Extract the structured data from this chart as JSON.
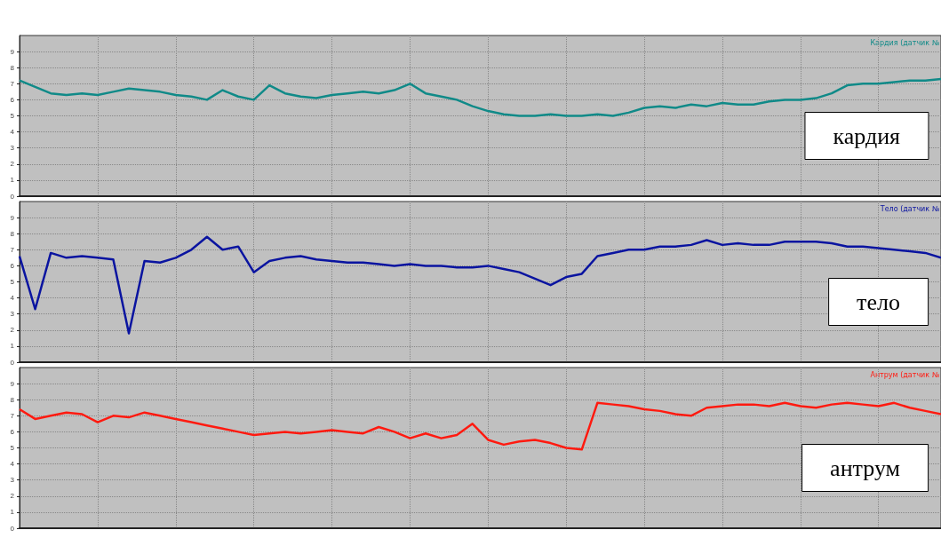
{
  "chart_data": [
    {
      "type": "line",
      "title": "кардия",
      "annotations": [
        "Кардия (датчик №"
      ],
      "categories": [
        null,
        null,
        null,
        null,
        null,
        null,
        null,
        null,
        null,
        null,
        null,
        null,
        null,
        null,
        null,
        null,
        null,
        null,
        null,
        null,
        null,
        null,
        null,
        null,
        null,
        null,
        null,
        null,
        null,
        null,
        null,
        null,
        null,
        null,
        null,
        null,
        null,
        null,
        null,
        null,
        null,
        null,
        null,
        null,
        null,
        null,
        null,
        null,
        null,
        null,
        null,
        null,
        null,
        null,
        null,
        null,
        null,
        null,
        null,
        null
      ],
      "series": [
        {
          "color": "#108a88",
          "values": [
            7.2,
            6.8,
            6.4,
            6.3,
            6.4,
            6.3,
            6.5,
            6.7,
            6.6,
            6.5,
            6.3,
            6.2,
            6.0,
            6.6,
            6.2,
            6.0,
            6.9,
            6.4,
            6.2,
            6.1,
            6.3,
            6.4,
            6.5,
            6.4,
            6.6,
            7.0,
            6.4,
            6.2,
            6.0,
            5.6,
            5.3,
            5.1,
            5.0,
            5.0,
            5.1,
            5.0,
            5.0,
            5.1,
            5.0,
            5.2,
            5.5,
            5.6,
            5.5,
            5.7,
            5.6,
            5.8,
            5.7,
            5.7,
            5.9,
            6.0,
            6.0,
            6.1,
            6.4,
            6.9,
            7.0,
            7.0,
            7.1,
            7.2,
            7.2,
            7.3
          ]
        }
      ],
      "ylim": [
        0,
        10
      ],
      "yticks": [
        0,
        1,
        2,
        3,
        4,
        5,
        6,
        7,
        8,
        9
      ],
      "grid": true,
      "tick_labels": "y",
      "marker": "none",
      "line_style": "solid"
    },
    {
      "type": "line",
      "title": "тело",
      "annotations": [
        "Тело (датчик №"
      ],
      "categories": [
        null,
        null,
        null,
        null,
        null,
        null,
        null,
        null,
        null,
        null,
        null,
        null,
        null,
        null,
        null,
        null,
        null,
        null,
        null,
        null,
        null,
        null,
        null,
        null,
        null,
        null,
        null,
        null,
        null,
        null,
        null,
        null,
        null,
        null,
        null,
        null,
        null,
        null,
        null,
        null,
        null,
        null,
        null,
        null,
        null,
        null,
        null,
        null,
        null,
        null,
        null,
        null,
        null,
        null,
        null,
        null,
        null,
        null,
        null,
        null
      ],
      "series": [
        {
          "color": "#0a14a0",
          "values": [
            6.6,
            3.3,
            6.8,
            6.5,
            6.6,
            6.5,
            6.4,
            1.8,
            6.3,
            6.2,
            6.5,
            7.0,
            7.8,
            7.0,
            7.2,
            5.6,
            6.3,
            6.5,
            6.6,
            6.4,
            6.3,
            6.2,
            6.2,
            6.1,
            6.0,
            6.1,
            6.0,
            6.0,
            5.9,
            5.9,
            6.0,
            5.8,
            5.6,
            5.2,
            4.8,
            5.3,
            5.5,
            6.6,
            6.8,
            7.0,
            7.0,
            7.2,
            7.2,
            7.3,
            7.6,
            7.3,
            7.4,
            7.3,
            7.3,
            7.5,
            7.5,
            7.5,
            7.4,
            7.2,
            7.2,
            7.1,
            7.0,
            6.9,
            6.8,
            6.5
          ]
        }
      ],
      "ylim": [
        0,
        10
      ],
      "yticks": [
        0,
        1,
        2,
        3,
        4,
        5,
        6,
        7,
        8,
        9
      ],
      "grid": true,
      "tick_labels": "y",
      "marker": "none",
      "line_style": "solid"
    },
    {
      "type": "line",
      "title": "антрум",
      "annotations": [
        "Антрум (датчик №"
      ],
      "categories": [
        null,
        null,
        null,
        null,
        null,
        null,
        null,
        null,
        null,
        null,
        null,
        null,
        null,
        null,
        null,
        null,
        null,
        null,
        null,
        null,
        null,
        null,
        null,
        null,
        null,
        null,
        null,
        null,
        null,
        null,
        null,
        null,
        null,
        null,
        null,
        null,
        null,
        null,
        null,
        null,
        null,
        null,
        null,
        null,
        null,
        null,
        null,
        null,
        null,
        null,
        null,
        null,
        null,
        null,
        null,
        null,
        null,
        null,
        null,
        null
      ],
      "series": [
        {
          "color": "#ff1a10",
          "values": [
            7.4,
            6.8,
            7.0,
            7.2,
            7.1,
            6.6,
            7.0,
            6.9,
            7.2,
            7.0,
            6.8,
            6.6,
            6.4,
            6.2,
            6.0,
            5.8,
            5.9,
            6.0,
            5.9,
            6.0,
            6.1,
            6.0,
            5.9,
            6.3,
            6.0,
            5.6,
            5.9,
            5.6,
            5.8,
            6.5,
            5.5,
            5.2,
            5.4,
            5.5,
            5.3,
            5.0,
            4.9,
            7.8,
            7.7,
            7.6,
            7.4,
            7.3,
            7.1,
            7.0,
            7.5,
            7.6,
            7.7,
            7.7,
            7.6,
            7.8,
            7.6,
            7.5,
            7.7,
            7.8,
            7.7,
            7.6,
            7.8,
            7.5,
            7.3,
            7.1
          ]
        }
      ],
      "ylim": [
        0,
        10
      ],
      "yticks": [
        0,
        1,
        2,
        3,
        4,
        5,
        6,
        7,
        8,
        9
      ],
      "grid": true,
      "tick_labels": "y",
      "marker": "none",
      "line_style": "solid"
    }
  ]
}
